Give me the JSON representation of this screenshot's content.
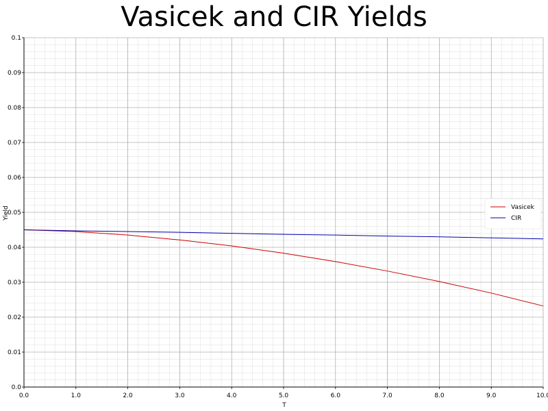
{
  "chart_data": {
    "type": "line",
    "title": "Vasicek and CIR Yields",
    "xlabel": "T",
    "ylabel": "Yield",
    "xlim": [
      0.0,
      10.0
    ],
    "ylim": [
      0.0,
      0.1
    ],
    "x_ticks": [
      "0.0",
      "1.0",
      "2.0",
      "3.0",
      "4.0",
      "5.0",
      "6.0",
      "7.0",
      "8.0",
      "9.0",
      "10.0"
    ],
    "y_ticks": [
      "0.0",
      "0.01",
      "0.02",
      "0.03",
      "0.04",
      "0.05",
      "0.06",
      "0.07",
      "0.08",
      "0.09",
      "0.1"
    ],
    "grid": true,
    "minor_grid": true,
    "legend_position": "right",
    "x": [
      0,
      1,
      2,
      3,
      4,
      5,
      6,
      7,
      8,
      9,
      10
    ],
    "series": [
      {
        "name": "Vasicek",
        "color": "#cc0000",
        "values": [
          0.045,
          0.0445,
          0.0435,
          0.0421,
          0.0404,
          0.0383,
          0.0359,
          0.0332,
          0.0302,
          0.0269,
          0.0232
        ]
      },
      {
        "name": "CIR",
        "color": "#0000aa",
        "values": [
          0.045,
          0.0447,
          0.0445,
          0.0443,
          0.044,
          0.0437,
          0.0435,
          0.0432,
          0.043,
          0.0427,
          0.0424
        ]
      }
    ]
  }
}
